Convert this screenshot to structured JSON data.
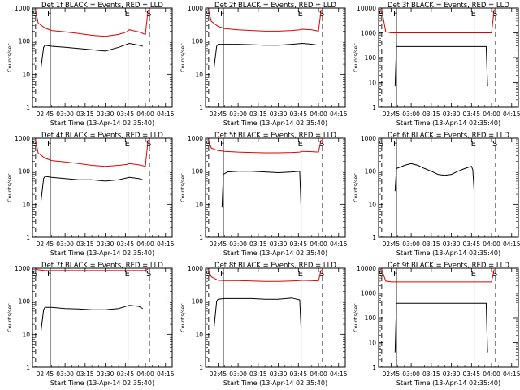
{
  "figure": {
    "panels": [
      {
        "title": "Det 1f BLACK = Events, RED = LLD",
        "ylabel": "Counts/sec",
        "xlabel": "Start Time (13-Apr-14 02:35:40)"
      },
      {
        "title": "Det 2f BLACK = Events, RED = LLD",
        "ylabel": "Counts/sec",
        "xlabel": "Start Time (13-Apr-14 02:35:40)"
      },
      {
        "title": "Det 3f BLACK = Events, RED = LLD",
        "ylabel": "Counts/sec",
        "xlabel": "Start Time (13-Apr-14 02:35:40)"
      },
      {
        "title": "Det 4f BLACK = Events, RED = LLD",
        "ylabel": "Counts/sec",
        "xlabel": "Start Time (13-Apr-14 02:35:40)"
      },
      {
        "title": "Det 5f BLACK = Events, RED = LLD",
        "ylabel": "Counts/sec",
        "xlabel": "Start Time (13-Apr-14 02:35:40)"
      },
      {
        "title": "Det 6f BLACK = Events, RED = LLD",
        "ylabel": "Counts/sec",
        "xlabel": "Start Time (13-Apr-14 02:35:40)"
      },
      {
        "title": "Det 7f BLACK = Events, RED = LLD",
        "ylabel": "Counts/sec",
        "xlabel": "Start Time (13-Apr-14 02:35:40)"
      },
      {
        "title": "Det 8f BLACK = Events, RED = LLD",
        "ylabel": "Counts/sec",
        "xlabel": "Start Time (13-Apr-14 02:35:40)"
      },
      {
        "title": "Det 9f BLACK = Events, RED = LLD",
        "ylabel": "Counts/sec",
        "xlabel": "Start Time (13-Apr-14 02:35:40)"
      }
    ]
  },
  "chart_data": [
    {
      "type": "line",
      "title": "Det 1f BLACK = Events, RED = LLD",
      "xlabel": "Start Time (13-Apr-14 02:35:40)",
      "ylabel": "Counts/sec",
      "y_scale": "log",
      "ylim": [
        1,
        1000
      ],
      "x_ticks": [
        "02:45",
        "03:00",
        "03:15",
        "03:30",
        "03:45",
        "04:00",
        "04:15"
      ],
      "y_ticks": [
        "1",
        "10",
        "100",
        "1000"
      ],
      "grid": false,
      "markers": [
        "S",
        "F",
        "E",
        "S"
      ],
      "marker_times": [
        "02:38",
        "02:49",
        "03:47",
        "04:03"
      ],
      "series": [
        {
          "name": "LLD",
          "color": "#e00000",
          "x": [
            "02:38",
            "02:40",
            "02:45",
            "02:50",
            "03:00",
            "03:10",
            "03:20",
            "03:30",
            "03:40",
            "03:46",
            "03:48",
            "03:55",
            "04:00",
            "04:02"
          ],
          "y": [
            850,
            350,
            250,
            210,
            190,
            170,
            150,
            140,
            160,
            190,
            220,
            190,
            160,
            900
          ]
        },
        {
          "name": "Events",
          "color": "#000000",
          "x": [
            "02:42",
            "02:44",
            "02:45",
            "02:50",
            "03:00",
            "03:10",
            "03:20",
            "03:30",
            "03:40",
            "03:48",
            "03:55",
            "03:58"
          ],
          "y": [
            15,
            65,
            75,
            70,
            65,
            60,
            55,
            50,
            65,
            85,
            75,
            70
          ]
        }
      ]
    },
    {
      "type": "line",
      "title": "Det 2f BLACK = Events, RED = LLD",
      "xlabel": "Start Time (13-Apr-14 02:35:40)",
      "ylabel": "Counts/sec",
      "y_scale": "log",
      "ylim": [
        1,
        1000
      ],
      "x_ticks": [
        "02:45",
        "03:00",
        "03:15",
        "03:30",
        "03:45",
        "04:00",
        "04:15"
      ],
      "y_ticks": [
        "1",
        "10",
        "100",
        "1000"
      ],
      "grid": false,
      "markers": [
        "S",
        "F",
        "E",
        "S"
      ],
      "marker_times": [
        "02:38",
        "02:49",
        "03:47",
        "04:03"
      ],
      "series": [
        {
          "name": "LLD",
          "color": "#e00000",
          "x": [
            "02:38",
            "02:40",
            "02:45",
            "02:50",
            "03:00",
            "03:10",
            "03:20",
            "03:30",
            "03:40",
            "03:46",
            "03:48",
            "03:55",
            "04:00",
            "04:02"
          ],
          "y": [
            850,
            400,
            280,
            240,
            220,
            210,
            200,
            200,
            210,
            220,
            230,
            220,
            200,
            900
          ]
        },
        {
          "name": "Events",
          "color": "#000000",
          "x": [
            "02:42",
            "02:44",
            "02:45",
            "02:50",
            "03:00",
            "03:10",
            "03:20",
            "03:30",
            "03:40",
            "03:48",
            "03:55",
            "03:58"
          ],
          "y": [
            15,
            70,
            80,
            80,
            80,
            78,
            75,
            75,
            80,
            85,
            80,
            78
          ]
        }
      ]
    },
    {
      "type": "line",
      "title": "Det 3f BLACK = Events, RED = LLD",
      "xlabel": "Start Time (13-Apr-14 02:35:40)",
      "ylabel": "Counts/sec",
      "y_scale": "log",
      "ylim": [
        1,
        10000
      ],
      "x_ticks": [
        "02:45",
        "03:00",
        "03:15",
        "03:30",
        "03:45",
        "04:00",
        "04:15"
      ],
      "y_ticks": [
        "1",
        "10",
        "100",
        "1000",
        "10000"
      ],
      "grid": false,
      "markers": [
        "S",
        "F",
        "E",
        "S"
      ],
      "marker_times": [
        "02:38",
        "02:49",
        "03:47",
        "04:03"
      ],
      "series": [
        {
          "name": "LLD",
          "color": "#e00000",
          "x": [
            "02:38",
            "02:41",
            "02:45",
            "03:00",
            "03:15",
            "03:30",
            "03:45",
            "03:55",
            "04:00",
            "04:02"
          ],
          "y": [
            9000,
            1100,
            1000,
            1000,
            1000,
            1000,
            1000,
            1000,
            1000,
            9000
          ]
        },
        {
          "name": "Events",
          "color": "#000000",
          "x": [
            "02:48",
            "02:49",
            "03:00",
            "03:15",
            "03:30",
            "03:45",
            "03:56",
            "03:57"
          ],
          "y": [
            7,
            280,
            280,
            280,
            280,
            280,
            280,
            7
          ]
        }
      ]
    },
    {
      "type": "line",
      "title": "Det 4f BLACK = Events, RED = LLD",
      "xlabel": "Start Time (13-Apr-14 02:35:40)",
      "ylabel": "Counts/sec",
      "y_scale": "log",
      "ylim": [
        1,
        1000
      ],
      "x_ticks": [
        "02:45",
        "03:00",
        "03:15",
        "03:30",
        "03:45",
        "04:00",
        "04:15"
      ],
      "y_ticks": [
        "1",
        "10",
        "100",
        "1000"
      ],
      "grid": false,
      "markers": [
        "S",
        "F",
        "E",
        "S"
      ],
      "marker_times": [
        "02:38",
        "02:49",
        "03:47",
        "04:03"
      ],
      "series": [
        {
          "name": "LLD",
          "color": "#e00000",
          "x": [
            "02:38",
            "02:40",
            "02:45",
            "02:50",
            "03:00",
            "03:10",
            "03:20",
            "03:30",
            "03:40",
            "03:46",
            "03:48",
            "03:55",
            "04:00",
            "04:02"
          ],
          "y": [
            850,
            350,
            250,
            210,
            190,
            170,
            150,
            140,
            150,
            160,
            170,
            155,
            140,
            900
          ]
        },
        {
          "name": "Events",
          "color": "#000000",
          "x": [
            "02:42",
            "02:44",
            "02:45",
            "02:50",
            "03:00",
            "03:10",
            "03:20",
            "03:30",
            "03:40",
            "03:48",
            "03:55",
            "03:58"
          ],
          "y": [
            12,
            60,
            70,
            65,
            60,
            55,
            55,
            50,
            55,
            65,
            60,
            55
          ]
        }
      ]
    },
    {
      "type": "line",
      "title": "Det 5f BLACK = Events, RED = LLD",
      "xlabel": "Start Time (13-Apr-14 02:35:40)",
      "ylabel": "Counts/sec",
      "y_scale": "log",
      "ylim": [
        1,
        1000
      ],
      "x_ticks": [
        "02:45",
        "03:00",
        "03:15",
        "03:30",
        "03:45",
        "04:00",
        "04:15"
      ],
      "y_ticks": [
        "1",
        "10",
        "100",
        "1000"
      ],
      "grid": false,
      "markers": [
        "S",
        "F",
        "E",
        "S"
      ],
      "marker_times": [
        "02:38",
        "02:49",
        "03:47",
        "04:03"
      ],
      "series": [
        {
          "name": "LLD",
          "color": "#e00000",
          "x": [
            "02:38",
            "02:40",
            "02:45",
            "02:50",
            "03:00",
            "03:10",
            "03:20",
            "03:30",
            "03:40",
            "03:46",
            "03:48",
            "03:55",
            "04:00",
            "04:02"
          ],
          "y": [
            850,
            500,
            420,
            400,
            380,
            370,
            360,
            360,
            370,
            380,
            400,
            390,
            380,
            900
          ]
        },
        {
          "name": "Events",
          "color": "#000000",
          "x": [
            "02:48",
            "02:49",
            "02:52",
            "03:00",
            "03:10",
            "03:20",
            "03:30",
            "03:40",
            "03:46",
            "03:47"
          ],
          "y": [
            8,
            80,
            95,
            100,
            100,
            95,
            90,
            95,
            100,
            8
          ]
        }
      ]
    },
    {
      "type": "line",
      "title": "Det 6f BLACK = Events, RED = LLD",
      "xlabel": "Start Time (13-Apr-14 02:35:40)",
      "ylabel": "Counts/sec",
      "y_scale": "log",
      "ylim": [
        1,
        1000
      ],
      "x_ticks": [
        "02:45",
        "03:00",
        "03:15",
        "03:30",
        "03:45",
        "04:00",
        "04:15"
      ],
      "y_ticks": [
        "1",
        "10",
        "100",
        "1000"
      ],
      "grid": false,
      "markers": [
        "S",
        "F",
        "E",
        "S"
      ],
      "marker_times": [
        "02:38",
        "02:49",
        "03:47",
        "04:03"
      ],
      "series": [
        {
          "name": "Events",
          "color": "#000000",
          "x": [
            "02:48",
            "02:49",
            "02:55",
            "03:00",
            "03:05",
            "03:10",
            "03:15",
            "03:20",
            "03:25",
            "03:30",
            "03:35",
            "03:40",
            "03:45",
            "03:46",
            "03:47"
          ],
          "y": [
            25,
            120,
            150,
            170,
            150,
            120,
            100,
            80,
            75,
            80,
            100,
            120,
            140,
            110,
            25
          ]
        }
      ]
    },
    {
      "type": "line",
      "title": "Det 7f BLACK = Events, RED = LLD",
      "xlabel": "Start Time (13-Apr-14 02:35:40)",
      "ylabel": "Counts/sec",
      "y_scale": "log",
      "ylim": [
        1,
        1000
      ],
      "x_ticks": [
        "02:45",
        "03:00",
        "03:15",
        "03:30",
        "03:45",
        "04:00",
        "04:15"
      ],
      "y_ticks": [
        "1",
        "10",
        "100",
        "1000"
      ],
      "grid": false,
      "markers": [
        "S",
        "F",
        "E",
        "S"
      ],
      "marker_times": [
        "02:38",
        "02:49",
        "03:47",
        "04:03"
      ],
      "series": [
        {
          "name": "LLD",
          "color": "#e00000",
          "x": [
            "02:38",
            "02:40",
            "02:45",
            "03:00",
            "03:15",
            "03:30",
            "03:45",
            "03:55",
            "04:00",
            "04:02"
          ],
          "y": [
            950,
            900,
            850,
            850,
            850,
            850,
            850,
            850,
            850,
            950
          ]
        },
        {
          "name": "Events",
          "color": "#000000",
          "x": [
            "02:42",
            "02:44",
            "02:45",
            "02:50",
            "03:00",
            "03:10",
            "03:20",
            "03:30",
            "03:40",
            "03:48",
            "03:55",
            "03:58"
          ],
          "y": [
            12,
            55,
            65,
            65,
            60,
            58,
            55,
            55,
            60,
            75,
            70,
            60
          ]
        }
      ]
    },
    {
      "type": "line",
      "title": "Det 8f BLACK = Events, RED = LLD",
      "xlabel": "Start Time (13-Apr-14 02:35:40)",
      "ylabel": "Counts/sec",
      "y_scale": "log",
      "ylim": [
        1,
        1000
      ],
      "x_ticks": [
        "02:45",
        "03:00",
        "03:15",
        "03:30",
        "03:45",
        "04:00",
        "04:15"
      ],
      "y_ticks": [
        "1",
        "10",
        "100",
        "1000"
      ],
      "grid": false,
      "markers": [
        "S",
        "F",
        "E",
        "S"
      ],
      "marker_times": [
        "02:38",
        "02:49",
        "03:47",
        "04:03"
      ],
      "series": [
        {
          "name": "LLD",
          "color": "#e00000",
          "x": [
            "02:38",
            "02:40",
            "02:45",
            "02:50",
            "03:00",
            "03:10",
            "03:20",
            "03:30",
            "03:40",
            "03:46",
            "03:48",
            "03:55",
            "04:00",
            "04:02"
          ],
          "y": [
            850,
            550,
            430,
            420,
            420,
            410,
            400,
            400,
            410,
            420,
            430,
            420,
            410,
            900
          ]
        },
        {
          "name": "Events",
          "color": "#000000",
          "x": [
            "02:42",
            "02:44",
            "02:45",
            "02:50",
            "03:00",
            "03:10",
            "03:20",
            "03:30",
            "03:40",
            "03:46",
            "03:47"
          ],
          "y": [
            15,
            100,
            115,
            120,
            120,
            120,
            115,
            115,
            125,
            110,
            15
          ]
        }
      ]
    },
    {
      "type": "line",
      "title": "Det 9f BLACK = Events, RED = LLD",
      "xlabel": "Start Time (13-Apr-14 02:35:40)",
      "ylabel": "Counts/sec",
      "y_scale": "log",
      "ylim": [
        1,
        10000
      ],
      "x_ticks": [
        "02:45",
        "03:00",
        "03:15",
        "03:30",
        "03:45",
        "04:00",
        "04:15"
      ],
      "y_ticks": [
        "1",
        "10",
        "100",
        "1000",
        "10000"
      ],
      "grid": false,
      "markers": [
        "S",
        "F",
        "E",
        "S"
      ],
      "marker_times": [
        "02:38",
        "02:49",
        "03:47",
        "04:03"
      ],
      "series": [
        {
          "name": "LLD",
          "color": "#e00000",
          "x": [
            "02:38",
            "02:41",
            "02:45",
            "03:00",
            "03:15",
            "03:30",
            "03:45",
            "03:55",
            "04:00",
            "04:02"
          ],
          "y": [
            9000,
            3000,
            2800,
            2800,
            2800,
            2800,
            2800,
            2800,
            2800,
            9000
          ]
        },
        {
          "name": "Events",
          "color": "#000000",
          "x": [
            "02:48",
            "02:49",
            "03:00",
            "03:15",
            "03:30",
            "03:45",
            "03:56",
            "03:57"
          ],
          "y": [
            4,
            380,
            380,
            380,
            380,
            380,
            380,
            4
          ]
        }
      ]
    }
  ]
}
